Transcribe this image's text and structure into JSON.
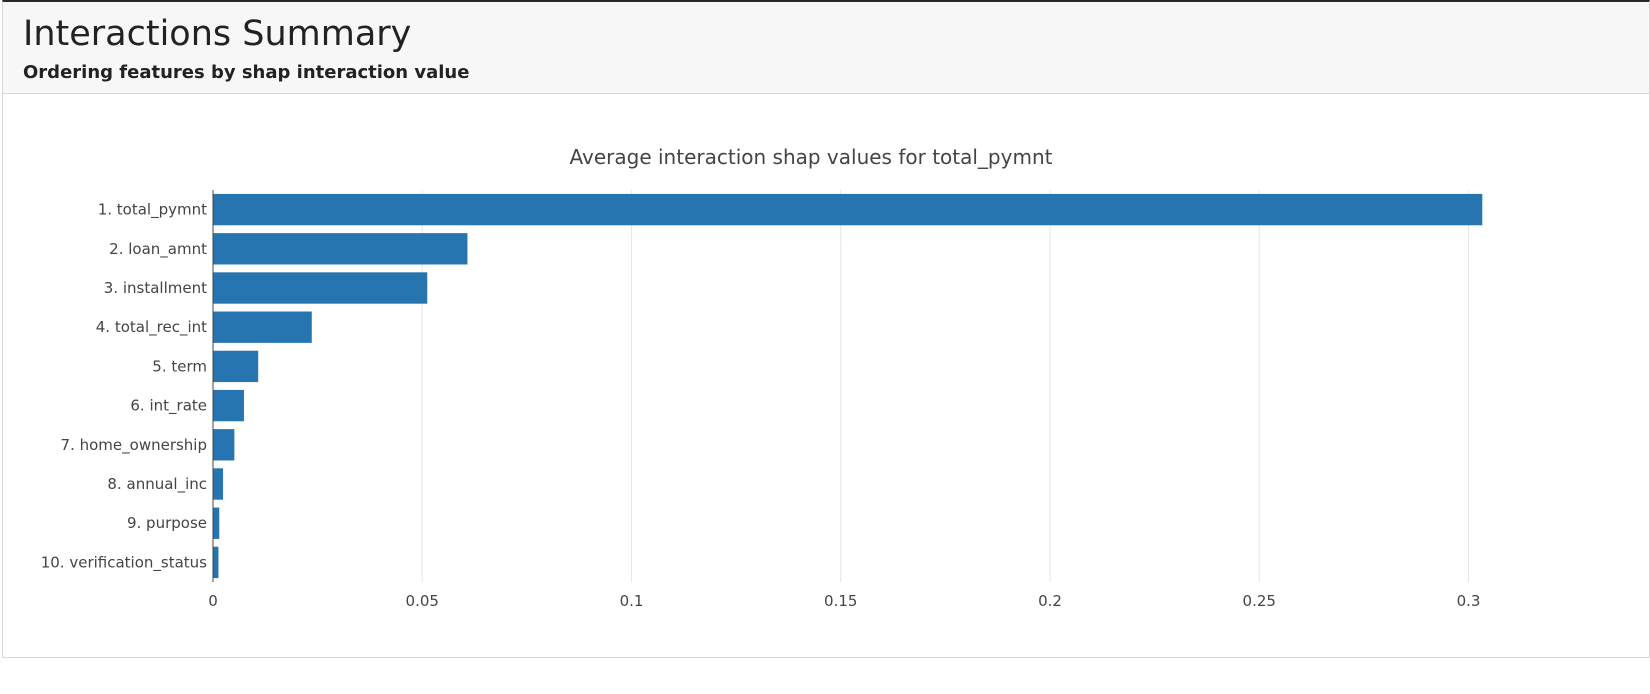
{
  "header": {
    "title": "Interactions Summary",
    "subtitle": "Ordering features by shap interaction value"
  },
  "chart_data": {
    "type": "bar",
    "orientation": "horizontal",
    "title": "Average interaction shap values for total_pymnt",
    "xlabel": "",
    "ylabel": "",
    "xlim": [
      0,
      0.31
    ],
    "xticks": [
      0,
      0.05,
      0.1,
      0.15,
      0.2,
      0.25,
      0.3
    ],
    "xtick_labels": [
      "0",
      "0.05",
      "0.1",
      "0.15",
      "0.2",
      "0.25",
      "0.3"
    ],
    "grid": true,
    "categories": [
      "1. total_pymnt",
      "2. loan_amnt",
      "3. installment",
      "4. total_rec_int",
      "5. term",
      "6. int_rate",
      "7. home_ownership",
      "8. annual_inc",
      "9. purpose",
      "10. verification_status"
    ],
    "values": [
      0.3033,
      0.0608,
      0.0512,
      0.0236,
      0.0108,
      0.0074,
      0.0051,
      0.0024,
      0.0015,
      0.0013
    ],
    "bar_color": "#2675b0"
  }
}
